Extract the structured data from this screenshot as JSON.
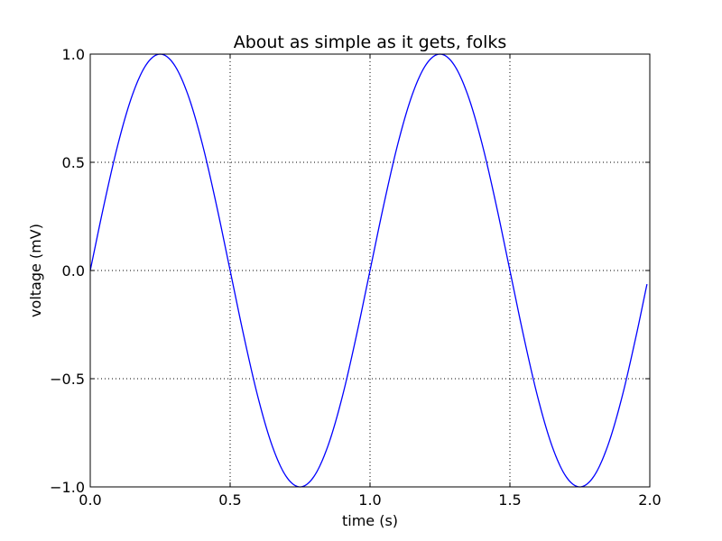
{
  "chart_data": {
    "type": "line",
    "title": "About as simple as it gets, folks",
    "xlabel": "time (s)",
    "ylabel": "voltage (mV)",
    "xlim": [
      0.0,
      2.0
    ],
    "ylim": [
      -1.0,
      1.0
    ],
    "grid": true,
    "line_color": "#0000ff",
    "x_ticks": [
      0.0,
      0.5,
      1.0,
      1.5,
      2.0
    ],
    "x_tick_labels": [
      "0.0",
      "0.5",
      "1.0",
      "1.5",
      "2.0"
    ],
    "y_ticks": [
      1.0,
      0.5,
      0.0,
      -0.5,
      -1.0
    ],
    "y_tick_labels": [
      "1.0",
      "0.5",
      "0.0",
      "−0.5",
      "−1.0"
    ],
    "series": [
      {
        "x": [
          0.0,
          0.05,
          0.1,
          0.15,
          0.2,
          0.25,
          0.3,
          0.35,
          0.4,
          0.45,
          0.5,
          0.55,
          0.6,
          0.65,
          0.7,
          0.75,
          0.8,
          0.85,
          0.9,
          0.95,
          1.0,
          1.05,
          1.1,
          1.15,
          1.2,
          1.25,
          1.3,
          1.35,
          1.4,
          1.45,
          1.5,
          1.55,
          1.6,
          1.65,
          1.7,
          1.75,
          1.8,
          1.85,
          1.9,
          1.95,
          1.99
        ],
        "values": [
          0.0,
          0.309,
          0.588,
          0.809,
          0.951,
          1.0,
          0.951,
          0.809,
          0.588,
          0.309,
          0.0,
          -0.309,
          -0.588,
          -0.809,
          -0.951,
          -1.0,
          -0.951,
          -0.809,
          -0.588,
          -0.309,
          0.0,
          0.309,
          0.588,
          0.809,
          0.951,
          1.0,
          0.951,
          0.809,
          0.588,
          0.309,
          0.0,
          -0.309,
          -0.588,
          -0.809,
          -0.951,
          -1.0,
          -0.951,
          -0.809,
          -0.588,
          -0.309,
          -0.063
        ]
      }
    ]
  }
}
